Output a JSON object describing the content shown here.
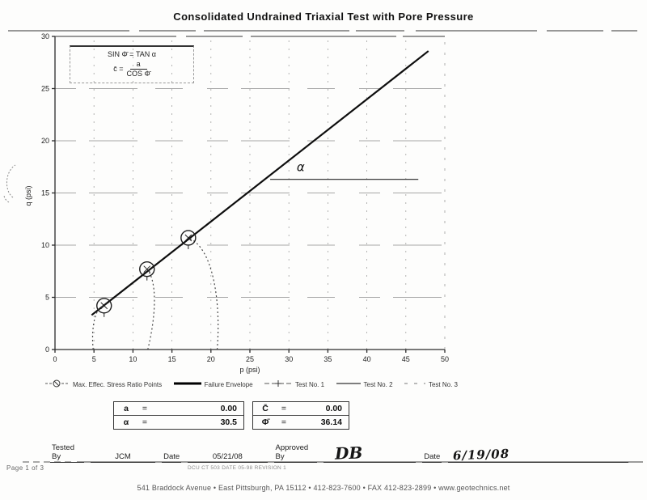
{
  "title": "Consolidated Undrained Triaxial Test with Pore Pressure",
  "formula": {
    "line1": "SIN Φ̄ = TAN α",
    "lhs": "c̄ =",
    "numerator": "a",
    "denominator": "COS Φ̄"
  },
  "chart_data": {
    "type": "line",
    "title": "Consolidated Undrained Triaxial Test with Pore Pressure",
    "xlabel": "p (psi)",
    "ylabel": "q (psi)",
    "xlim": [
      0,
      50
    ],
    "ylim": [
      0,
      30
    ],
    "x_ticks": [
      0,
      5,
      10,
      15,
      20,
      25,
      30,
      35,
      40,
      45,
      50
    ],
    "y_ticks": [
      0,
      5,
      10,
      15,
      20,
      25,
      30
    ],
    "grid": true,
    "alpha_label": "α",
    "alpha_label_pos": {
      "p": 31.0,
      "q": 17.1
    },
    "angle_line": {
      "q": 16.3,
      "p_from": 27.6,
      "p_to": 46.6
    },
    "envelope": {
      "name": "Failure Envelope",
      "p": [
        4.7,
        47.9
      ],
      "q": [
        3.3,
        28.6
      ]
    },
    "max_stress_points": [
      {
        "p": 6.3,
        "q": 4.2
      },
      {
        "p": 11.8,
        "q": 7.7
      },
      {
        "p": 17.1,
        "q": 10.7
      }
    ],
    "stress_paths": [
      {
        "name": "Test No. 1",
        "path": [
          [
            4.9,
            0
          ],
          [
            4.6,
            2.2
          ],
          [
            5.2,
            4.1
          ],
          [
            6.3,
            4.2
          ]
        ]
      },
      {
        "name": "Test No. 2",
        "path": [
          [
            11.9,
            0
          ],
          [
            12.9,
            3.0
          ],
          [
            13.2,
            6.5
          ],
          [
            11.8,
            7.7
          ]
        ]
      },
      {
        "name": "Test No. 3",
        "path": [
          [
            20.8,
            0
          ],
          [
            21.3,
            4.5
          ],
          [
            20.3,
            9.8
          ],
          [
            17.1,
            10.7
          ]
        ]
      }
    ]
  },
  "legend": [
    {
      "label": "Max. Effec. Stress Ratio Points",
      "marker": "circle-line"
    },
    {
      "label": "Failure Envelope",
      "marker": "thick-line"
    },
    {
      "label": "Test No. 1",
      "marker": "dash-plus"
    },
    {
      "label": "Test No. 2",
      "marker": "thin-line"
    },
    {
      "label": "Test No. 3",
      "marker": "sparse-dash"
    }
  ],
  "results": {
    "a_label": "a",
    "a_eq": "=",
    "a_value": "0.00",
    "alpha_label": "α",
    "alpha_eq": "=",
    "alpha_value": "30.5",
    "c_label": "C̄",
    "c_eq": "=",
    "c_value": "0.00",
    "phi_label": "Φ̄",
    "phi_eq": "=",
    "phi_value": "36.14"
  },
  "signature": {
    "tested_by_label": "Tested By",
    "tested_by": "JCM",
    "date1_label": "Date",
    "date1": "05/21/08",
    "approved_by_label": "Approved By",
    "approved_by": "DB",
    "date2_label": "Date",
    "date2": "6/19/08"
  },
  "footer": {
    "page": "Page 1 of 3",
    "form_number": "DCU CT 503 DATE 05-98 REVISION 1",
    "address": "541 Braddock Avenue  •  East Pittsburgh, PA 15112  •  412-823-7600  •  FAX 412-823-2899  •  www.geotechnics.net"
  }
}
